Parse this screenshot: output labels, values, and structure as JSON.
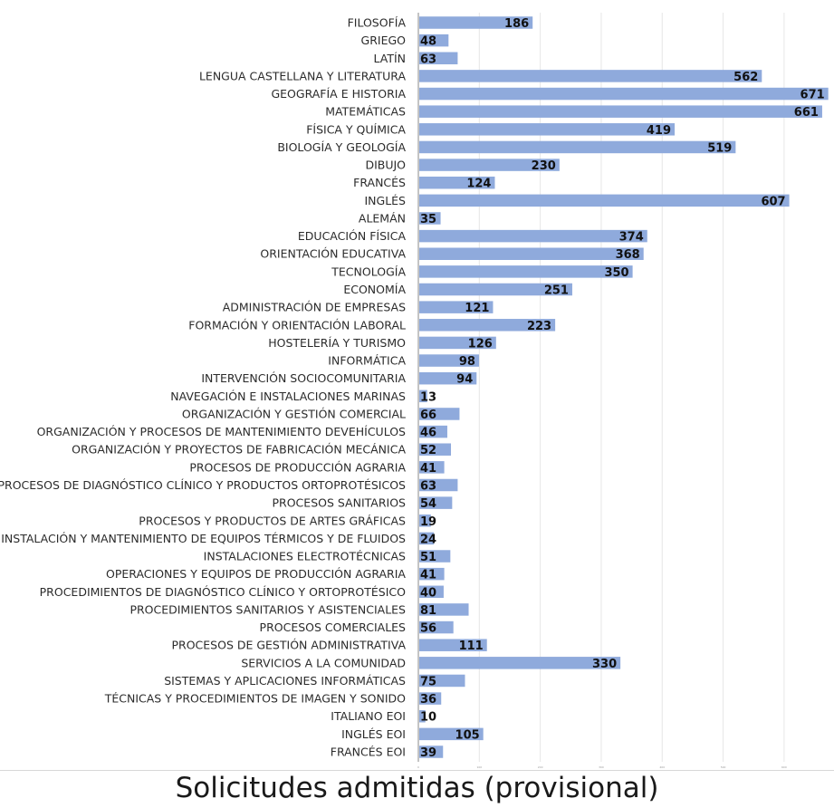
{
  "chart_data": {
    "type": "bar",
    "orientation": "horizontal",
    "title": "Solicitudes admitidas (provisional)",
    "xlabel": "",
    "ylabel": "",
    "xlim": [
      0,
      670
    ],
    "x_ticks": [
      "0",
      "100",
      "200",
      "300",
      "400",
      "500",
      "600"
    ],
    "grid": true,
    "legend": "none",
    "bar_color": "#8faadc",
    "categories": [
      "FILOSOFÍA",
      "GRIEGO",
      "LATÍN",
      "LENGUA CASTELLANA Y LITERATURA",
      "GEOGRAFÍA E HISTORIA",
      "MATEMÁTICAS",
      "FÍSICA Y QUÍMICA",
      "BIOLOGÍA Y GEOLOGÍA",
      "DIBUJO",
      "FRANCÉS",
      "INGLÉS",
      "ALEMÁN",
      "EDUCACIÓN FÍSICA",
      "ORIENTACIÓN EDUCATIVA",
      "TECNOLOGÍA",
      "ECONOMÍA",
      "ADMINISTRACIÓN DE EMPRESAS",
      "FORMACIÓN Y ORIENTACIÓN LABORAL",
      "HOSTELERÍA Y TURISMO",
      "INFORMÁTICA",
      "INTERVENCIÓN SOCIOCOMUNITARIA",
      "NAVEGACIÓN E INSTALACIONES MARINAS",
      "ORGANIZACIÓN Y GESTIÓN COMERCIAL",
      "ORGANIZACIÓN Y PROCESOS DE MANTENIMIENTO DEVEHÍCULOS",
      "ORGANIZACIÓN Y PROYECTOS DE FABRICACIÓN MECÁNICA",
      "PROCESOS DE PRODUCCIÓN AGRARIA",
      "PROCESOS DE DIAGNÓSTICO CLÍNICO Y PRODUCTOS ORTOPROTÉSICOS",
      "PROCESOS SANITARIOS",
      "PROCESOS Y PRODUCTOS DE ARTES GRÁFICAS",
      "INSTALACIÓN Y MANTENIMIENTO DE EQUIPOS TÉRMICOS Y DE FLUIDOS",
      "INSTALACIONES ELECTROTÉCNICAS",
      "OPERACIONES Y EQUIPOS DE PRODUCCIÓN AGRARIA",
      "PROCEDIMIENTOS DE DIAGNÓSTICO CLÍNICO Y ORTOPROTÉSICO",
      "PROCEDIMIENTOS SANITARIOS Y ASISTENCIALES",
      "PROCESOS COMERCIALES",
      "PROCESOS DE GESTIÓN ADMINISTRATIVA",
      "SERVICIOS A LA COMUNIDAD",
      "SISTEMAS Y APLICACIONES INFORMÁTICAS",
      "TÉCNICAS Y PROCEDIMIENTOS DE IMAGEN Y SONIDO",
      "ITALIANO EOI",
      "INGLÉS EOI",
      "FRANCÉS EOI"
    ],
    "values": [
      186,
      48,
      63,
      562,
      671,
      661,
      419,
      519,
      230,
      124,
      607,
      35,
      374,
      368,
      350,
      251,
      121,
      223,
      126,
      98,
      94,
      13,
      66,
      46,
      52,
      41,
      63,
      54,
      19,
      24,
      51,
      41,
      40,
      81,
      56,
      111,
      330,
      75,
      36,
      10,
      105,
      39
    ]
  }
}
